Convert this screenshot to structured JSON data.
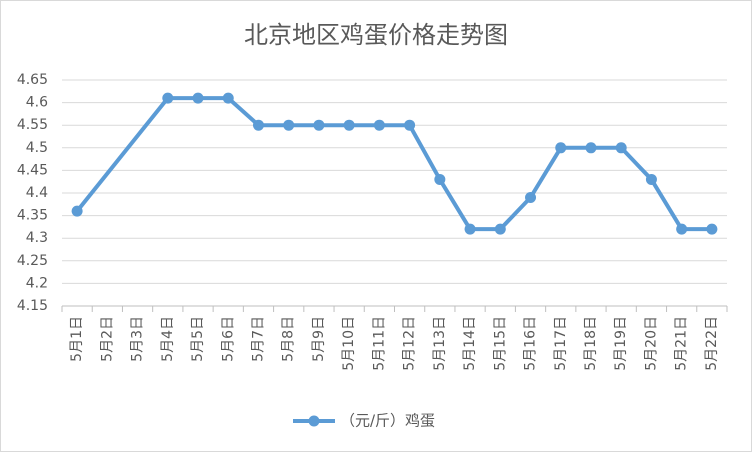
{
  "chart_data": {
    "type": "line",
    "title": "北京地区鸡蛋价格走势图",
    "categories": [
      "5月1日",
      "5月2日",
      "5月3日",
      "5月4日",
      "5月5日",
      "5月6日",
      "5月7日",
      "5月8日",
      "5月9日",
      "5月10日",
      "5月11日",
      "5月12日",
      "5月13日",
      "5月14日",
      "5月15日",
      "5月16日",
      "5月17日",
      "5月18日",
      "5月19日",
      "5月20日",
      "5月21日",
      "5月22日"
    ],
    "series": [
      {
        "name": "（元/斤）鸡蛋",
        "color": "#5b9bd5",
        "values": [
          4.36,
          null,
          null,
          4.61,
          4.61,
          4.61,
          4.55,
          4.55,
          4.55,
          4.55,
          4.55,
          4.55,
          4.43,
          4.32,
          4.32,
          4.39,
          4.5,
          4.5,
          4.5,
          4.43,
          4.32,
          4.32
        ]
      }
    ],
    "ylim": [
      4.15,
      4.65
    ],
    "yticks": [
      4.15,
      4.2,
      4.25,
      4.3,
      4.35,
      4.4,
      4.45,
      4.5,
      4.55,
      4.6,
      4.65
    ],
    "grid": true,
    "span_gaps": true,
    "legend": "bottom"
  }
}
